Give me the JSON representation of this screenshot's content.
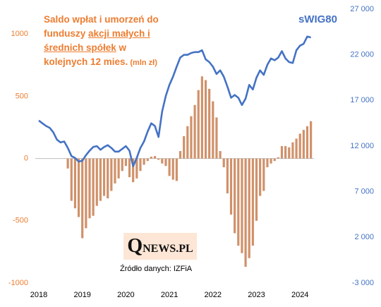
{
  "chart_data": {
    "type": "bar-line",
    "title_parts": [
      "Saldo wpłat i umorzeń do",
      "funduszy ",
      "akcji małych i",
      "średnich spółek",
      " w",
      "kolejnych 12 mies.",
      " (mln zł)"
    ],
    "source": "Źródło danych: IZFiA",
    "logo": [
      "Q",
      "NEWS.PL"
    ],
    "categories": [
      "2018",
      null,
      null,
      null,
      null,
      null,
      null,
      null,
      null,
      null,
      null,
      null,
      "2019",
      null,
      null,
      null,
      null,
      null,
      null,
      null,
      null,
      null,
      null,
      null,
      "2020",
      null,
      null,
      null,
      null,
      null,
      null,
      null,
      null,
      null,
      null,
      null,
      "2021",
      null,
      null,
      null,
      null,
      null,
      null,
      null,
      null,
      null,
      null,
      null,
      "2022",
      null,
      null,
      null,
      null,
      null,
      null,
      null,
      null,
      null,
      null,
      null,
      "2023",
      null,
      null,
      null,
      null,
      null,
      null,
      null,
      null,
      null,
      null,
      null,
      "2024",
      null,
      null,
      null
    ],
    "series": [
      {
        "name": "Saldo wpłat i umorzeń",
        "type": "bar",
        "color": "#d0916a",
        "values": [
          null,
          null,
          null,
          null,
          null,
          null,
          null,
          null,
          -80,
          -340,
          -400,
          -470,
          -640,
          -560,
          -480,
          -460,
          -380,
          -340,
          -300,
          -320,
          -260,
          -200,
          -160,
          -100,
          -60,
          -150,
          -190,
          -160,
          -100,
          -50,
          -20,
          15,
          20,
          -10,
          -40,
          -60,
          -140,
          -170,
          -180,
          60,
          180,
          260,
          340,
          430,
          550,
          660,
          630,
          560,
          460,
          330,
          60,
          -70,
          -280,
          -450,
          -600,
          -700,
          -760,
          -870,
          -800,
          -700,
          -500,
          -300,
          -260,
          -70,
          -40,
          -20,
          10,
          100,
          100,
          90,
          130,
          160,
          200,
          230,
          260,
          300
        ]
      },
      {
        "name": "sWIG80",
        "type": "line",
        "axis": "y2",
        "color": "#4472c4",
        "values": [
          14800,
          14500,
          14200,
          14000,
          13500,
          12700,
          12400,
          12500,
          11800,
          10900,
          10700,
          10300,
          10400,
          11000,
          11500,
          11900,
          12000,
          11600,
          11900,
          12100,
          11800,
          11400,
          11400,
          11700,
          12000,
          11500,
          9800,
          10700,
          11800,
          12500,
          13600,
          14500,
          14200,
          13000,
          15800,
          17500,
          18700,
          19600,
          20700,
          21700,
          22000,
          22000,
          22200,
          22300,
          22300,
          22500,
          21500,
          21200,
          20700,
          19900,
          20300,
          19600,
          18500,
          17300,
          17600,
          17300,
          16500,
          17200,
          18700,
          18200,
          19500,
          20300,
          19800,
          20900,
          21600,
          21400,
          21700,
          22400,
          21600,
          21200,
          21100,
          22500,
          23000,
          23200,
          24000,
          23900
        ]
      }
    ],
    "ylim": [
      -1000,
      1200
    ],
    "yticks": [
      -1000,
      -500,
      0,
      500,
      1000
    ],
    "y2lim": [
      -3000,
      27000
    ],
    "y2ticks": [
      {
        "value": -3000,
        "label": "-3 000"
      },
      {
        "value": 2000,
        "label": "2 000"
      },
      {
        "value": 7000,
        "label": "7 000"
      },
      {
        "value": 12000,
        "label": "12 000"
      },
      {
        "value": 17000,
        "label": "17 000"
      },
      {
        "value": 22000,
        "label": "22 000"
      },
      {
        "value": 27000,
        "label": "27 000"
      }
    ],
    "grid": false
  }
}
